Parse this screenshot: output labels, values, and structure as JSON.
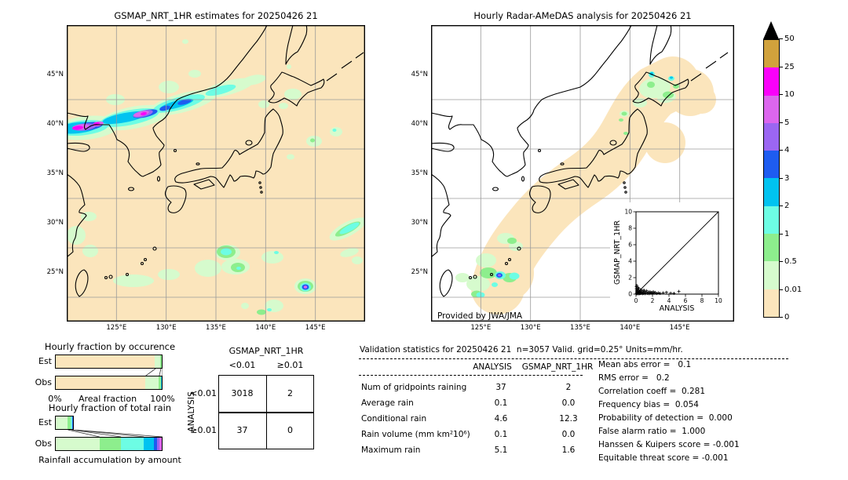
{
  "figure": {
    "left_map_title": "GSMAP_NRT_1HR estimates for 20250426 21",
    "right_map_title": "Hourly Radar-AMeDAS analysis for 20250426 21",
    "credit": "Provided by JWA/JMA",
    "lon_ticks": [
      "125°E",
      "130°E",
      "135°E",
      "140°E",
      "145°E"
    ],
    "lat_ticks": [
      "45°N",
      "40°N",
      "35°N",
      "30°N",
      "25°N"
    ]
  },
  "colorbar": {
    "units_note": "mm/hr",
    "tick_labels": [
      "50",
      "25",
      "10",
      "5",
      "4",
      "3",
      "2",
      "1",
      "0.5",
      "0.01",
      "0"
    ],
    "bands_top_to_bottom": [
      "#d1a23c",
      "#fa00fa",
      "#dc66ee",
      "#9b66f2",
      "#1e5cf0",
      "#00c3f0",
      "#6dfde4",
      "#8dee8d",
      "#d6fbcd",
      "#fbe5bc"
    ]
  },
  "chart_data": [
    {
      "type": "bar",
      "id": "occurrence-fractions",
      "title": "Hourly fraction by occurence",
      "rows": [
        "Est",
        "Obs"
      ],
      "xlabel": "Areal fraction",
      "x0_label": "0%",
      "x1_label": "100%",
      "series": [
        {
          "name": "Est",
          "segments": [
            {
              "color": "#fbe5bc",
              "frac": 0.935
            },
            {
              "color": "#d6fbcd",
              "frac": 0.05
            },
            {
              "color": "#8dee8d",
              "frac": 0.015
            }
          ]
        },
        {
          "name": "Obs",
          "segments": [
            {
              "color": "#fbe5bc",
              "frac": 0.845
            },
            {
              "color": "#d6fbcd",
              "frac": 0.125
            },
            {
              "color": "#8dee8d",
              "frac": 0.025
            },
            {
              "color": "#00c3f0",
              "frac": 0.005
            }
          ]
        }
      ],
      "connectors": [
        [
          0.935,
          0.845
        ],
        [
          0.985,
          0.97
        ],
        [
          1,
          1
        ]
      ]
    },
    {
      "type": "bar",
      "id": "total-rain-fractions",
      "title": "Hourly fraction of total rain",
      "rows": [
        "Est",
        "Obs"
      ],
      "xlabel": "Rainfall accumulation by amount",
      "series": [
        {
          "name": "Est",
          "segments": [
            {
              "color": "#d6fbcd",
              "frac": 0.12
            },
            {
              "color": "#8dee8d",
              "frac": 0.034
            },
            {
              "color": "#6dfde4",
              "frac": 0.012
            },
            {
              "color": "#1e5cf0",
              "frac": 0.006
            }
          ]
        },
        {
          "name": "Obs",
          "segments": [
            {
              "color": "#d6fbcd",
              "frac": 0.414
            },
            {
              "color": "#8dee8d",
              "frac": 0.2
            },
            {
              "color": "#6dfde4",
              "frac": 0.213
            },
            {
              "color": "#00c3f0",
              "frac": 0.098
            },
            {
              "color": "#1e5cf0",
              "frac": 0.029
            },
            {
              "color": "#9b66f2",
              "frac": 0.026
            },
            {
              "color": "#dc66ee",
              "frac": 0.02
            }
          ]
        }
      ],
      "connectors": [
        [
          0.12,
          0.414
        ],
        [
          0.154,
          0.614
        ],
        [
          0.166,
          0.827
        ],
        [
          0.172,
          1
        ]
      ]
    },
    {
      "type": "table",
      "id": "contingency-table",
      "title": "GSMAP_NRT_1HR",
      "row_axis": "ANALYSIS",
      "col_headers": [
        "<0.01",
        "≥0.01"
      ],
      "row_headers": [
        "<0.01",
        "≥0.01"
      ],
      "values": [
        [
          "3018",
          "2"
        ],
        [
          "37",
          "0"
        ]
      ]
    },
    {
      "type": "table",
      "id": "validation-statistics",
      "title": "Validation statistics for 20250426 21  n=3057 Valid. grid=0.25° Units=mm/hr.",
      "col_headers": [
        "ANALYSIS",
        "GSMAP_NRT_1HR"
      ],
      "rows": [
        [
          "Num of gridpoints raining",
          "37",
          "2"
        ],
        [
          "Average rain",
          "0.1",
          "0.0"
        ],
        [
          "Conditional rain",
          "4.6",
          "12.3"
        ],
        [
          "Rain volume (mm km²10⁶)",
          "0.1",
          "0.0"
        ],
        [
          "Maximum rain",
          "5.1",
          "1.6"
        ]
      ],
      "scores": [
        "Mean abs error =   0.1",
        "RMS error =   0.2",
        "Correlation coeff =  0.281",
        "Frequency bias =  0.054",
        "Probability of detection =  0.000",
        "False alarm ratio =  1.000",
        "Hanssen & Kuipers score = -0.001",
        "Equitable threat score = -0.001"
      ]
    },
    {
      "type": "scatter",
      "id": "inset-scatter",
      "xlabel": "ANALYSIS",
      "ylabel": "GSMAP_NRT_1HR",
      "xlim": [
        0,
        10
      ],
      "ylim": [
        0,
        10
      ],
      "ticks": [
        0,
        2,
        4,
        6,
        8,
        10
      ],
      "diagonal": true,
      "points": [
        [
          0.05,
          0.05
        ],
        [
          0.08,
          0.2
        ],
        [
          0.1,
          0.4
        ],
        [
          0.12,
          0.1
        ],
        [
          0.15,
          0.6
        ],
        [
          0.18,
          0.05
        ],
        [
          0.2,
          0.3
        ],
        [
          0.22,
          0.8
        ],
        [
          0.25,
          0.15
        ],
        [
          0.28,
          0.5
        ],
        [
          0.3,
          0.05
        ],
        [
          0.32,
          0.25
        ],
        [
          0.35,
          0.7
        ],
        [
          0.38,
          0.1
        ],
        [
          0.4,
          0.35
        ],
        [
          0.45,
          0.06
        ],
        [
          0.5,
          0.2
        ],
        [
          0.52,
          0.5
        ],
        [
          0.55,
          0.1
        ],
        [
          0.6,
          0.3
        ],
        [
          0.65,
          0.08
        ],
        [
          0.7,
          0.45
        ],
        [
          0.75,
          0.15
        ],
        [
          0.8,
          0.06
        ],
        [
          0.85,
          0.3
        ],
        [
          0.9,
          0.1
        ],
        [
          0.95,
          0.5
        ],
        [
          1.0,
          0.15
        ],
        [
          1.05,
          0.35
        ],
        [
          1.1,
          0.06
        ],
        [
          1.2,
          0.2
        ],
        [
          1.3,
          0.4
        ],
        [
          1.4,
          0.1
        ],
        [
          1.5,
          0.25
        ],
        [
          1.6,
          0.06
        ],
        [
          1.7,
          0.3
        ],
        [
          1.8,
          0.12
        ],
        [
          1.9,
          0.2
        ],
        [
          2.0,
          0.06
        ],
        [
          2.1,
          0.3
        ],
        [
          2.2,
          0.12
        ],
        [
          2.35,
          0.2
        ],
        [
          2.5,
          0.08
        ],
        [
          2.7,
          0.15
        ],
        [
          0.05,
          0.9
        ],
        [
          0.1,
          1.05
        ],
        [
          0.05,
          0.65
        ],
        [
          2.9,
          0.1
        ],
        [
          3.3,
          0.15
        ],
        [
          3.7,
          0.22
        ],
        [
          4.2,
          0.12
        ],
        [
          4.6,
          0.1
        ],
        [
          5.2,
          0.32
        ]
      ]
    }
  ]
}
